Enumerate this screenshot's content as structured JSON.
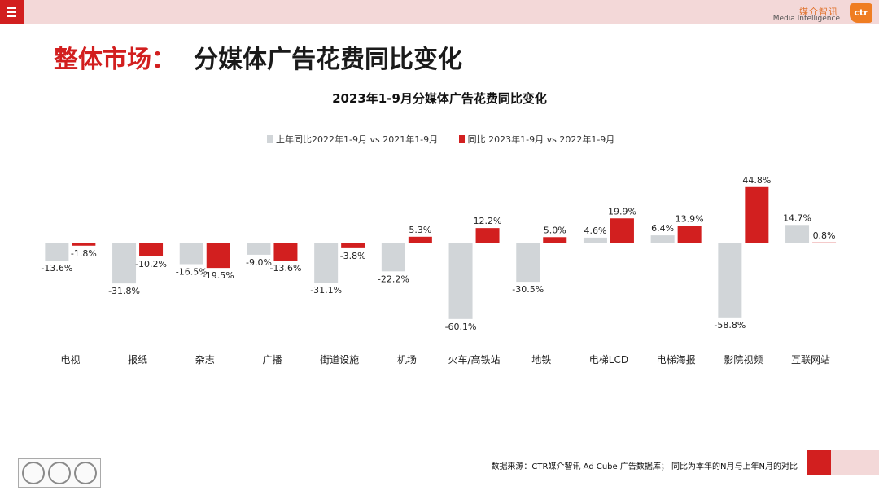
{
  "header": {
    "logo_cn": "媒介智讯",
    "logo_en": "Media Intelligence",
    "logo_mark": "ctr"
  },
  "page": {
    "title_red": "整体市场：",
    "title_black": "分媒体广告花费同比变化"
  },
  "chart_data": {
    "type": "bar",
    "title": "2023年1-9月分媒体广告花费同比变化",
    "categories": [
      "电视",
      "报纸",
      "杂志",
      "广播",
      "街道设施",
      "机场",
      "火车/高铁站",
      "地铁",
      "电梯LCD",
      "电梯海报",
      "影院视频",
      "互联网站"
    ],
    "series": [
      {
        "name": "上年同比2022年1-9月  vs  2021年1-9月",
        "color": "#d1d5d8",
        "values": [
          -13.6,
          -31.8,
          -16.5,
          -9.0,
          -31.1,
          -22.2,
          -60.1,
          -30.5,
          4.6,
          6.4,
          -58.8,
          14.7
        ]
      },
      {
        "name": "同比 2023年1-9月  vs  2022年1-9月",
        "color": "#d21f1f",
        "values": [
          -1.8,
          -10.2,
          -19.5,
          -13.6,
          -3.8,
          5.3,
          12.2,
          5.0,
          19.9,
          13.9,
          44.8,
          0.8
        ]
      }
    ],
    "value_suffix": "%",
    "ylim": [
      -65,
      55
    ],
    "grid": false,
    "legend_position": "top-center"
  },
  "footer": {
    "source": "数据来源：CTR媒介智讯 Ad Cube 广告数据库；  同比为本年的N月与上年N月的对比"
  }
}
